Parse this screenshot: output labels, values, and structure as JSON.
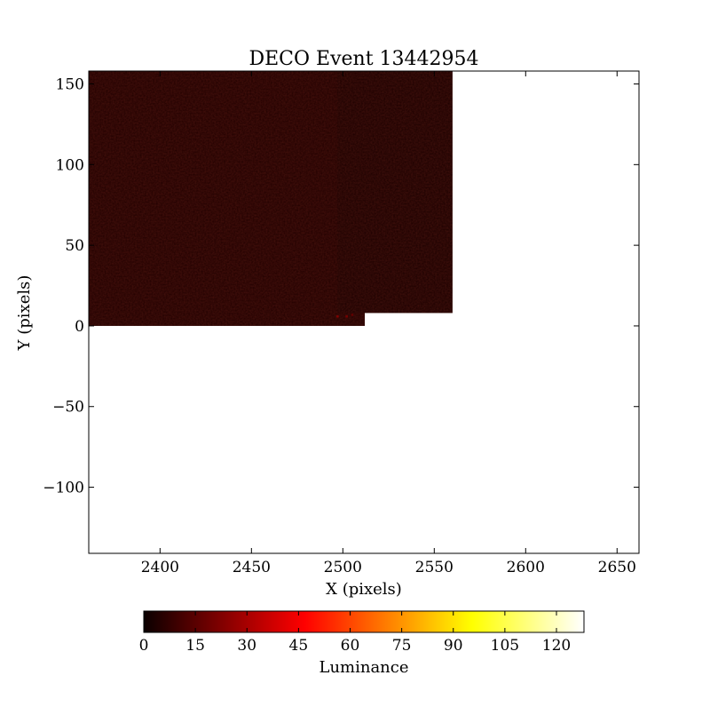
{
  "chart_data": {
    "type": "heatmap",
    "title": "DECO Event 13442954",
    "xlabel": "X (pixels)",
    "ylabel": "Y (pixels)",
    "xlim": [
      2361,
      2662
    ],
    "ylim": [
      -141,
      158
    ],
    "xticks": [
      2400,
      2450,
      2500,
      2550,
      2600,
      2650
    ],
    "yticks": [
      150,
      100,
      50,
      0,
      -50,
      -100
    ],
    "grid": false,
    "regions": [
      {
        "x0": 2361,
        "x1": 2512,
        "y0": 0,
        "y1": 158,
        "level": 4
      },
      {
        "x0": 2497,
        "x1": 2560,
        "y0": 8,
        "y1": 158,
        "level": 3
      }
    ],
    "hot_spots": [
      {
        "x": 2497,
        "y": 6,
        "level": 22
      },
      {
        "x": 2502,
        "y": 6,
        "level": 20
      },
      {
        "x": 2505,
        "y": 7,
        "level": 16
      }
    ],
    "colorbar": {
      "label": "Luminance",
      "min": 0,
      "max": 128,
      "ticks": [
        0,
        15,
        30,
        45,
        60,
        75,
        90,
        105,
        120
      ],
      "colormap": "hot",
      "orientation": "horizontal"
    }
  }
}
